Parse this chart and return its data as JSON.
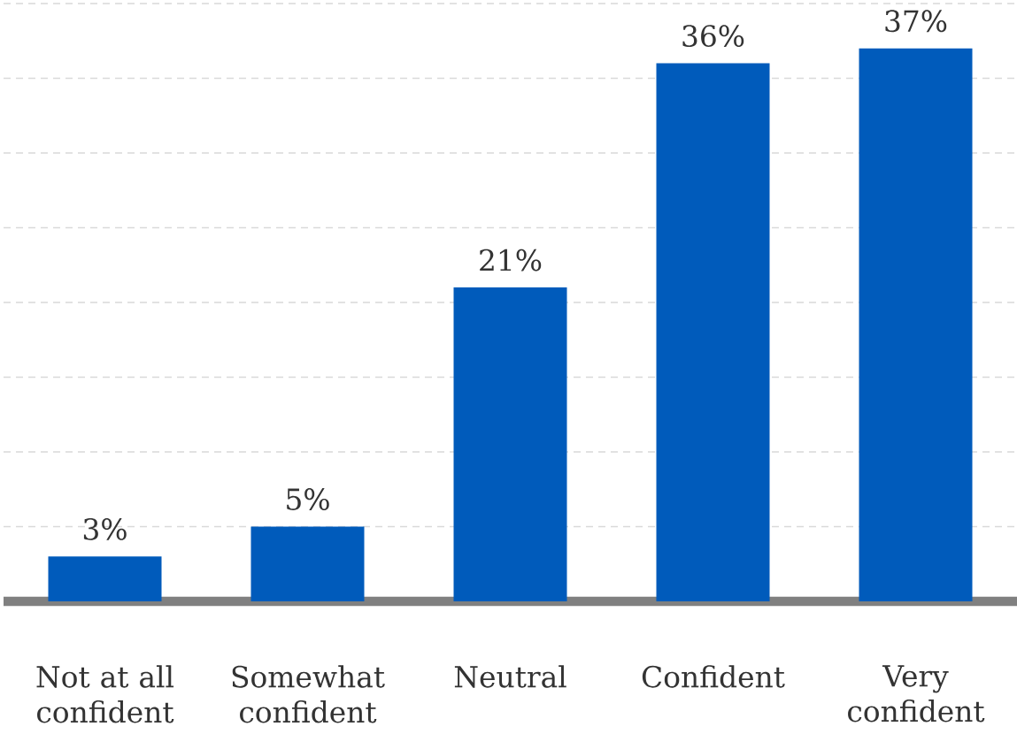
{
  "chart_data": {
    "type": "bar",
    "categories": [
      "Not at all confident",
      "Somewhat confident",
      "Neutral",
      "Confident",
      "Very confident"
    ],
    "values": [
      3,
      5,
      21,
      36,
      37
    ],
    "color": "#005bbb",
    "value_labels": [
      "3%",
      "5%",
      "21%",
      "36%",
      "37%"
    ],
    "ylim": [
      0,
      40
    ],
    "yticks": [
      {
        "value": 5,
        "label": null
      },
      {
        "value": 10,
        "label": null
      },
      {
        "value": 15,
        "label": null
      },
      {
        "value": 20,
        "label": null
      },
      {
        "value": 25,
        "label": null
      },
      {
        "value": 30,
        "label": null
      },
      {
        "value": 35,
        "label": null
      },
      {
        "value": 40,
        "label": null
      }
    ],
    "grid": "y",
    "tick_labels": "x"
  }
}
